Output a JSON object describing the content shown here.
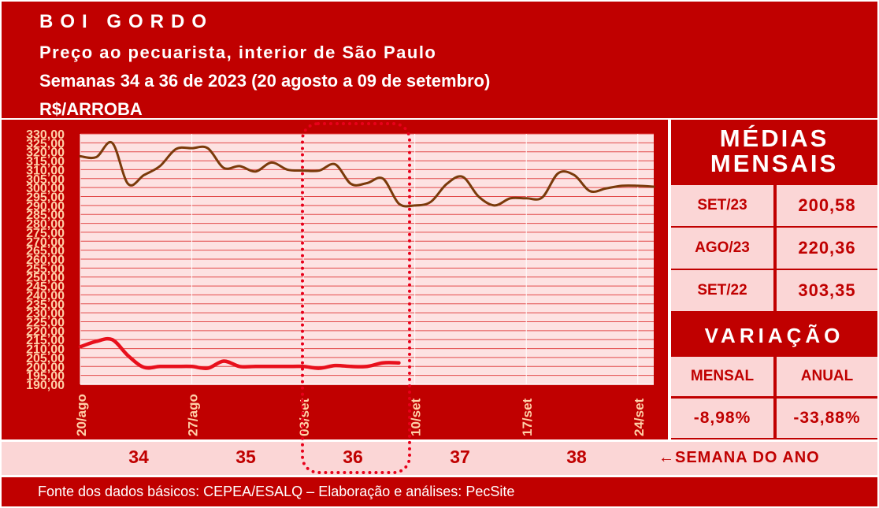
{
  "header": {
    "title": "BOI GORDO",
    "subtitle": "Preço ao pecuarista, interior de São Paulo",
    "period": "Semanas 34 a 36 de 2023 (20 agosto a 09 de setembro)",
    "unit": "R$/ARROBA"
  },
  "chart_data": {
    "type": "line",
    "ylim": [
      190,
      330
    ],
    "y_ticks": [
      "190,00",
      "195,00",
      "200,00",
      "205,00",
      "210,00",
      "215,00",
      "220,00",
      "225,00",
      "230,00",
      "235,00",
      "240,00",
      "245,00",
      "250,00",
      "255,00",
      "260,00",
      "265,00",
      "270,00",
      "275,00",
      "280,00",
      "285,00",
      "290,00",
      "295,00",
      "300,00",
      "305,00",
      "310,00",
      "315,00",
      "320,00",
      "325,00",
      "330,00"
    ],
    "x_ticks": [
      {
        "label": "20/ago",
        "x": 0
      },
      {
        "label": "27/ago",
        "x": 7
      },
      {
        "label": "03/set",
        "x": 14
      },
      {
        "label": "10/set",
        "x": 21
      },
      {
        "label": "17/set",
        "x": 28
      },
      {
        "label": "24/set",
        "x": 35
      }
    ],
    "x_range": [
      0,
      36
    ],
    "series": [
      {
        "color": "#7a3a0a",
        "points": [
          [
            0,
            317.5
          ],
          [
            1,
            317
          ],
          [
            2,
            325
          ],
          [
            3,
            302
          ],
          [
            4,
            307
          ],
          [
            5,
            312
          ],
          [
            6,
            321.5
          ],
          [
            7,
            322
          ],
          [
            8,
            322
          ],
          [
            9,
            311
          ],
          [
            10,
            312
          ],
          [
            11,
            309
          ],
          [
            12,
            314
          ],
          [
            13,
            310
          ],
          [
            14,
            309.5
          ],
          [
            15,
            309.5
          ],
          [
            16,
            313
          ],
          [
            17,
            302
          ],
          [
            18,
            302.5
          ],
          [
            19,
            305
          ],
          [
            20,
            291
          ],
          [
            21,
            290
          ],
          [
            22,
            292
          ],
          [
            23,
            302
          ],
          [
            24,
            306
          ],
          [
            25,
            295
          ],
          [
            26,
            290
          ],
          [
            27,
            294
          ],
          [
            28,
            294
          ],
          [
            29,
            294.5
          ],
          [
            30,
            308
          ],
          [
            31,
            307
          ],
          [
            32,
            298
          ],
          [
            33,
            299.5
          ],
          [
            34,
            301
          ],
          [
            35,
            301
          ],
          [
            36,
            300.5
          ]
        ]
      },
      {
        "color": "#e8101c",
        "points": [
          [
            0,
            211
          ],
          [
            1,
            214
          ],
          [
            2,
            215
          ],
          [
            3,
            206
          ],
          [
            4,
            199.5
          ],
          [
            5,
            200
          ],
          [
            6,
            200
          ],
          [
            7,
            200
          ],
          [
            8,
            199
          ],
          [
            9,
            203
          ],
          [
            10,
            200
          ],
          [
            11,
            200
          ],
          [
            12,
            200
          ],
          [
            13,
            200
          ],
          [
            14,
            200
          ],
          [
            15,
            199
          ],
          [
            16,
            200.5
          ],
          [
            17,
            200
          ],
          [
            18,
            200
          ],
          [
            19,
            202
          ],
          [
            20,
            202
          ]
        ]
      }
    ]
  },
  "medias": {
    "title_line1": "MÉDIAS",
    "title_line2": "MENSAIS",
    "rows": [
      {
        "label": "SET/23",
        "value": "200,58"
      },
      {
        "label": "AGO/23",
        "value": "220,36"
      },
      {
        "label": "SET/22",
        "value": "303,35"
      }
    ]
  },
  "variacao": {
    "title": "VARIAÇÃO",
    "mensal_label": "MENSAL",
    "anual_label": "ANUAL",
    "mensal_value": "-8,98%",
    "anual_value": "-33,88%"
  },
  "weeks": {
    "items": [
      "34",
      "35",
      "36",
      "37",
      "38"
    ],
    "label": "←SEMANA DO ANO"
  },
  "footer": {
    "source": "Fonte dos dados básicos: CEPEA/ESALQ – Elaboração e análises: PecSite"
  },
  "colors": {
    "background": "#c00000",
    "panel": "#fbd6d6",
    "plot_bg": "#fde2e2",
    "grid": "#e24a4a",
    "text_dark": "#c00000"
  }
}
